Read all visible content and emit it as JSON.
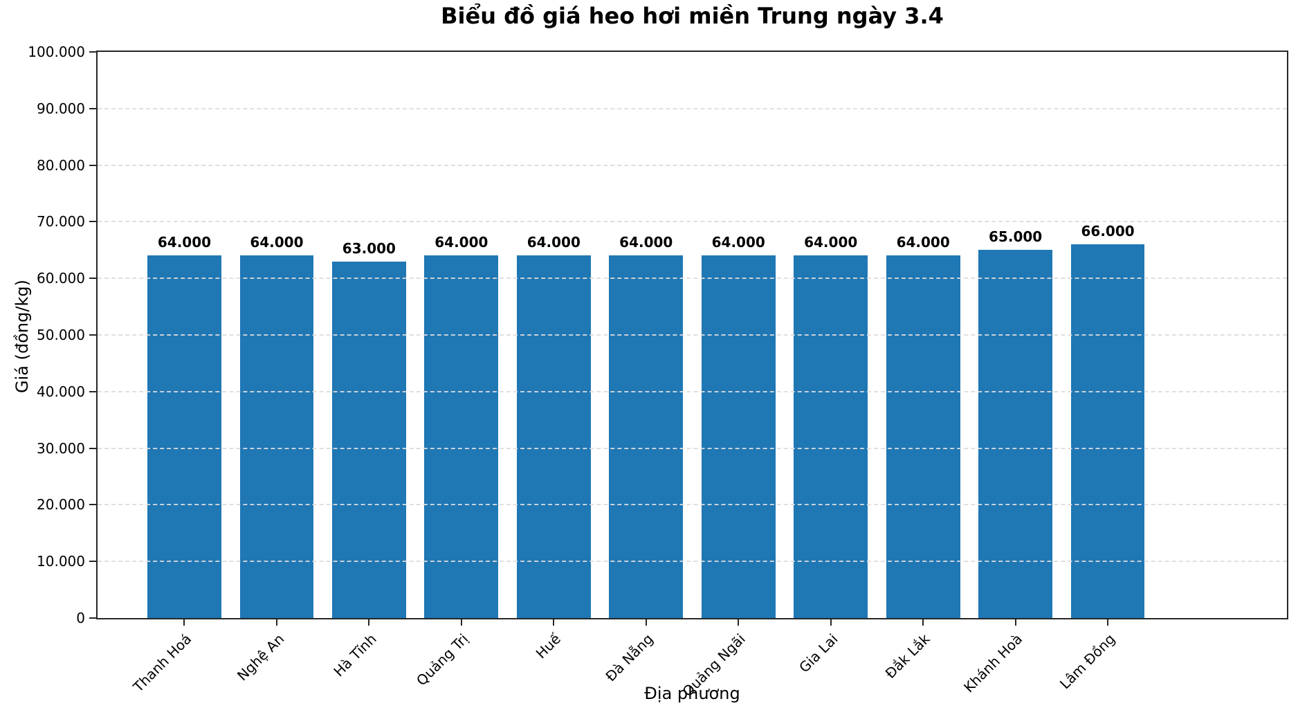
{
  "chart_data": {
    "type": "bar",
    "title": "Biểu đồ giá heo hơi miền Trung ngày 3.4",
    "xlabel": "Địa phương",
    "ylabel": "Giá (đồng/kg)",
    "categories": [
      "Thanh Hoá",
      "Nghệ An",
      "Hà Tĩnh",
      "Quảng Trị",
      "Huế",
      "Đà Nẵng",
      "Quảng Ngãi",
      "Gia Lai",
      "Đắk Lắk",
      "Khánh Hoà",
      "Lâm Đồng"
    ],
    "values": [
      64000,
      64000,
      63000,
      64000,
      64000,
      64000,
      64000,
      64000,
      64000,
      65000,
      66000
    ],
    "bar_labels": [
      "64.000",
      "64.000",
      "63.000",
      "64.000",
      "64.000",
      "64.000",
      "64.000",
      "64.000",
      "64.000",
      "65.000",
      "66.000"
    ],
    "ylim": [
      0,
      100000
    ],
    "ytick_values": [
      0,
      10000,
      20000,
      30000,
      40000,
      50000,
      60000,
      70000,
      80000,
      90000,
      100000
    ],
    "ytick_labels": [
      "0",
      "10.000",
      "20.000",
      "30.000",
      "40.000",
      "50.000",
      "60.000",
      "70.000",
      "80.000",
      "90.000",
      "100.000"
    ],
    "grid": "horizontal-dashed-over-bars",
    "legend_position": "none",
    "colors": {
      "bar": "#1f77b4",
      "spine": "#262626",
      "grid": "#dbdbdb",
      "text": "#000000"
    }
  }
}
